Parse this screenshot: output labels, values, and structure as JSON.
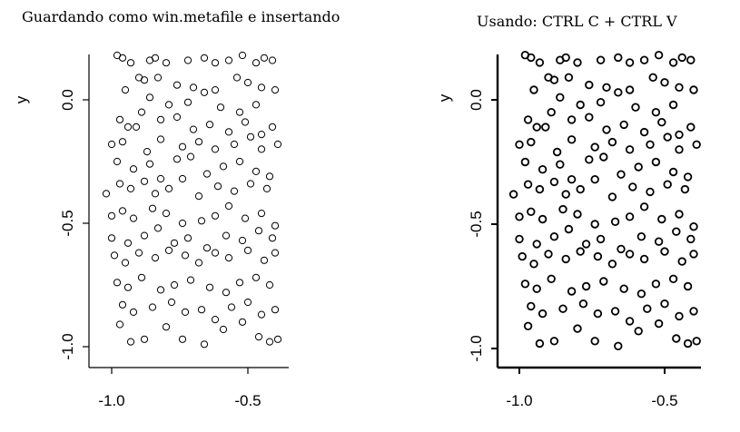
{
  "chart_data": [
    {
      "type": "scatter",
      "title": "Guardando como win.metafile e insertando",
      "ylabel": "y",
      "xlabel": "",
      "xticks": [
        -1.0,
        -0.5
      ],
      "xtick_labels": [
        "-1.0",
        "-0.5"
      ],
      "yticks": [
        0.0,
        -0.5,
        -1.0
      ],
      "ytick_labels": [
        "0.0",
        "-0.5",
        "-1.0"
      ],
      "xlim": [
        -1.08,
        -0.38
      ],
      "ylim": [
        -1.02,
        0.19
      ],
      "marker": "open-circle",
      "marker_color": "#000000",
      "points": [
        [
          -0.98,
          0.18
        ],
        [
          -0.96,
          0.17
        ],
        [
          -0.93,
          0.15
        ],
        [
          -0.86,
          0.16
        ],
        [
          -0.84,
          0.17
        ],
        [
          -0.8,
          0.15
        ],
        [
          -0.72,
          0.16
        ],
        [
          -0.66,
          0.17
        ],
        [
          -0.62,
          0.15
        ],
        [
          -0.57,
          0.16
        ],
        [
          -0.52,
          0.18
        ],
        [
          -0.47,
          0.15
        ],
        [
          -0.44,
          0.17
        ],
        [
          -0.41,
          0.16
        ],
        [
          -0.9,
          0.09
        ],
        [
          -0.88,
          0.08
        ],
        [
          -0.83,
          0.09
        ],
        [
          -0.76,
          0.06
        ],
        [
          -0.7,
          0.05
        ],
        [
          -0.66,
          0.03
        ],
        [
          -0.62,
          0.04
        ],
        [
          -0.54,
          0.09
        ],
        [
          -0.5,
          0.07
        ],
        [
          -0.45,
          0.05
        ],
        [
          -0.4,
          0.04
        ],
        [
          -0.95,
          0.04
        ],
        [
          -0.86,
          0.01
        ],
        [
          -0.79,
          -0.02
        ],
        [
          -0.72,
          -0.01
        ],
        [
          -0.6,
          -0.03
        ],
        [
          -0.53,
          -0.05
        ],
        [
          -0.47,
          -0.02
        ],
        [
          -0.97,
          -0.08
        ],
        [
          -0.94,
          -0.11
        ],
        [
          -0.89,
          -0.05
        ],
        [
          -0.82,
          -0.08
        ],
        [
          -0.76,
          -0.07
        ],
        [
          -0.7,
          -0.12
        ],
        [
          -0.64,
          -0.1
        ],
        [
          -0.57,
          -0.13
        ],
        [
          -0.51,
          -0.09
        ],
        [
          -0.45,
          -0.14
        ],
        [
          -0.41,
          -0.11
        ],
        [
          -1.0,
          -0.18
        ],
        [
          -0.96,
          -0.17
        ],
        [
          -0.91,
          -0.11
        ],
        [
          -0.87,
          -0.21
        ],
        [
          -0.82,
          -0.16
        ],
        [
          -0.74,
          -0.19
        ],
        [
          -0.68,
          -0.17
        ],
        [
          -0.62,
          -0.2
        ],
        [
          -0.55,
          -0.18
        ],
        [
          -0.49,
          -0.15
        ],
        [
          -0.45,
          -0.2
        ],
        [
          -0.39,
          -0.18
        ],
        [
          -0.98,
          -0.25
        ],
        [
          -0.92,
          -0.28
        ],
        [
          -0.86,
          -0.26
        ],
        [
          -0.82,
          -0.32
        ],
        [
          -0.76,
          -0.24
        ],
        [
          -0.71,
          -0.23
        ],
        [
          -0.65,
          -0.3
        ],
        [
          -0.59,
          -0.27
        ],
        [
          -0.53,
          -0.25
        ],
        [
          -0.47,
          -0.29
        ],
        [
          -0.42,
          -0.31
        ],
        [
          -1.02,
          -0.38
        ],
        [
          -0.97,
          -0.34
        ],
        [
          -0.93,
          -0.36
        ],
        [
          -0.88,
          -0.33
        ],
        [
          -0.84,
          -0.38
        ],
        [
          -0.79,
          -0.36
        ],
        [
          -0.74,
          -0.32
        ],
        [
          -0.68,
          -0.39
        ],
        [
          -0.61,
          -0.35
        ],
        [
          -0.55,
          -0.37
        ],
        [
          -0.49,
          -0.34
        ],
        [
          -0.43,
          -0.36
        ],
        [
          -1.0,
          -0.47
        ],
        [
          -0.96,
          -0.45
        ],
        [
          -0.92,
          -0.48
        ],
        [
          -0.85,
          -0.44
        ],
        [
          -0.8,
          -0.46
        ],
        [
          -0.74,
          -0.5
        ],
        [
          -0.67,
          -0.49
        ],
        [
          -0.62,
          -0.47
        ],
        [
          -0.57,
          -0.43
        ],
        [
          -0.51,
          -0.48
        ],
        [
          -0.45,
          -0.46
        ],
        [
          -0.4,
          -0.51
        ],
        [
          -1.0,
          -0.56
        ],
        [
          -0.94,
          -0.58
        ],
        [
          -0.88,
          -0.55
        ],
        [
          -0.83,
          -0.52
        ],
        [
          -0.77,
          -0.58
        ],
        [
          -0.72,
          -0.56
        ],
        [
          -0.65,
          -0.6
        ],
        [
          -0.58,
          -0.55
        ],
        [
          -0.52,
          -0.57
        ],
        [
          -0.46,
          -0.53
        ],
        [
          -0.41,
          -0.56
        ],
        [
          -0.99,
          -0.63
        ],
        [
          -0.95,
          -0.66
        ],
        [
          -0.9,
          -0.62
        ],
        [
          -0.84,
          -0.64
        ],
        [
          -0.79,
          -0.61
        ],
        [
          -0.73,
          -0.63
        ],
        [
          -0.68,
          -0.66
        ],
        [
          -0.62,
          -0.62
        ],
        [
          -0.57,
          -0.64
        ],
        [
          -0.5,
          -0.61
        ],
        [
          -0.44,
          -0.65
        ],
        [
          -0.4,
          -0.62
        ],
        [
          -0.98,
          -0.74
        ],
        [
          -0.94,
          -0.76
        ],
        [
          -0.89,
          -0.72
        ],
        [
          -0.82,
          -0.77
        ],
        [
          -0.77,
          -0.75
        ],
        [
          -0.71,
          -0.73
        ],
        [
          -0.64,
          -0.76
        ],
        [
          -0.58,
          -0.78
        ],
        [
          -0.53,
          -0.74
        ],
        [
          -0.47,
          -0.72
        ],
        [
          -0.42,
          -0.75
        ],
        [
          -0.96,
          -0.83
        ],
        [
          -0.92,
          -0.86
        ],
        [
          -0.85,
          -0.84
        ],
        [
          -0.78,
          -0.82
        ],
        [
          -0.73,
          -0.86
        ],
        [
          -0.67,
          -0.85
        ],
        [
          -0.62,
          -0.89
        ],
        [
          -0.56,
          -0.84
        ],
        [
          -0.5,
          -0.82
        ],
        [
          -0.45,
          -0.87
        ],
        [
          -0.4,
          -0.85
        ],
        [
          -0.97,
          -0.91
        ],
        [
          -0.93,
          -0.98
        ],
        [
          -0.88,
          -0.97
        ],
        [
          -0.8,
          -0.92
        ],
        [
          -0.74,
          -0.97
        ],
        [
          -0.66,
          -0.99
        ],
        [
          -0.59,
          -0.93
        ],
        [
          -0.52,
          -0.9
        ],
        [
          -0.46,
          -0.96
        ],
        [
          -0.42,
          -0.98
        ],
        [
          -0.39,
          -0.97
        ]
      ]
    },
    {
      "type": "scatter",
      "title": "Usando: CTRL C + CTRL V",
      "ylabel": "y",
      "xlabel": "",
      "xticks": [
        -1.0,
        -0.5
      ],
      "xtick_labels": [
        "-1.0",
        "-0.5"
      ],
      "yticks": [
        0.0,
        -0.5,
        -1.0
      ],
      "ytick_labels": [
        "0.0",
        "-0.5",
        "-1.0"
      ],
      "xlim": [
        -1.08,
        -0.38
      ],
      "ylim": [
        -1.02,
        0.19
      ],
      "marker": "open-circle",
      "marker_color": "#000000",
      "points": [
        [
          -0.98,
          0.18
        ],
        [
          -0.96,
          0.17
        ],
        [
          -0.93,
          0.15
        ],
        [
          -0.86,
          0.16
        ],
        [
          -0.84,
          0.17
        ],
        [
          -0.8,
          0.15
        ],
        [
          -0.72,
          0.16
        ],
        [
          -0.66,
          0.17
        ],
        [
          -0.62,
          0.15
        ],
        [
          -0.57,
          0.16
        ],
        [
          -0.52,
          0.18
        ],
        [
          -0.47,
          0.15
        ],
        [
          -0.44,
          0.17
        ],
        [
          -0.41,
          0.16
        ],
        [
          -0.9,
          0.09
        ],
        [
          -0.88,
          0.08
        ],
        [
          -0.83,
          0.09
        ],
        [
          -0.76,
          0.06
        ],
        [
          -0.7,
          0.05
        ],
        [
          -0.66,
          0.03
        ],
        [
          -0.62,
          0.04
        ],
        [
          -0.54,
          0.09
        ],
        [
          -0.5,
          0.07
        ],
        [
          -0.45,
          0.05
        ],
        [
          -0.4,
          0.04
        ],
        [
          -0.95,
          0.04
        ],
        [
          -0.86,
          0.01
        ],
        [
          -0.79,
          -0.02
        ],
        [
          -0.72,
          -0.01
        ],
        [
          -0.6,
          -0.03
        ],
        [
          -0.53,
          -0.05
        ],
        [
          -0.47,
          -0.02
        ],
        [
          -0.97,
          -0.08
        ],
        [
          -0.94,
          -0.11
        ],
        [
          -0.89,
          -0.05
        ],
        [
          -0.82,
          -0.08
        ],
        [
          -0.76,
          -0.07
        ],
        [
          -0.7,
          -0.12
        ],
        [
          -0.64,
          -0.1
        ],
        [
          -0.57,
          -0.13
        ],
        [
          -0.51,
          -0.09
        ],
        [
          -0.45,
          -0.14
        ],
        [
          -0.41,
          -0.11
        ],
        [
          -1.0,
          -0.18
        ],
        [
          -0.96,
          -0.17
        ],
        [
          -0.91,
          -0.11
        ],
        [
          -0.87,
          -0.21
        ],
        [
          -0.82,
          -0.16
        ],
        [
          -0.74,
          -0.19
        ],
        [
          -0.68,
          -0.17
        ],
        [
          -0.62,
          -0.2
        ],
        [
          -0.55,
          -0.18
        ],
        [
          -0.49,
          -0.15
        ],
        [
          -0.45,
          -0.2
        ],
        [
          -0.39,
          -0.18
        ],
        [
          -0.98,
          -0.25
        ],
        [
          -0.92,
          -0.28
        ],
        [
          -0.86,
          -0.26
        ],
        [
          -0.82,
          -0.32
        ],
        [
          -0.76,
          -0.24
        ],
        [
          -0.71,
          -0.23
        ],
        [
          -0.65,
          -0.3
        ],
        [
          -0.59,
          -0.27
        ],
        [
          -0.53,
          -0.25
        ],
        [
          -0.47,
          -0.29
        ],
        [
          -0.42,
          -0.31
        ],
        [
          -1.02,
          -0.38
        ],
        [
          -0.97,
          -0.34
        ],
        [
          -0.93,
          -0.36
        ],
        [
          -0.88,
          -0.33
        ],
        [
          -0.84,
          -0.38
        ],
        [
          -0.79,
          -0.36
        ],
        [
          -0.74,
          -0.32
        ],
        [
          -0.68,
          -0.39
        ],
        [
          -0.61,
          -0.35
        ],
        [
          -0.55,
          -0.37
        ],
        [
          -0.49,
          -0.34
        ],
        [
          -0.43,
          -0.36
        ],
        [
          -1.0,
          -0.47
        ],
        [
          -0.96,
          -0.45
        ],
        [
          -0.92,
          -0.48
        ],
        [
          -0.85,
          -0.44
        ],
        [
          -0.8,
          -0.46
        ],
        [
          -0.74,
          -0.5
        ],
        [
          -0.67,
          -0.49
        ],
        [
          -0.62,
          -0.47
        ],
        [
          -0.57,
          -0.43
        ],
        [
          -0.51,
          -0.48
        ],
        [
          -0.45,
          -0.46
        ],
        [
          -0.4,
          -0.51
        ],
        [
          -1.0,
          -0.56
        ],
        [
          -0.94,
          -0.58
        ],
        [
          -0.88,
          -0.55
        ],
        [
          -0.83,
          -0.52
        ],
        [
          -0.77,
          -0.58
        ],
        [
          -0.72,
          -0.56
        ],
        [
          -0.65,
          -0.6
        ],
        [
          -0.58,
          -0.55
        ],
        [
          -0.52,
          -0.57
        ],
        [
          -0.46,
          -0.53
        ],
        [
          -0.41,
          -0.56
        ],
        [
          -0.99,
          -0.63
        ],
        [
          -0.95,
          -0.66
        ],
        [
          -0.9,
          -0.62
        ],
        [
          -0.84,
          -0.64
        ],
        [
          -0.79,
          -0.61
        ],
        [
          -0.73,
          -0.63
        ],
        [
          -0.68,
          -0.66
        ],
        [
          -0.62,
          -0.62
        ],
        [
          -0.57,
          -0.64
        ],
        [
          -0.5,
          -0.61
        ],
        [
          -0.44,
          -0.65
        ],
        [
          -0.4,
          -0.62
        ],
        [
          -0.98,
          -0.74
        ],
        [
          -0.94,
          -0.76
        ],
        [
          -0.89,
          -0.72
        ],
        [
          -0.82,
          -0.77
        ],
        [
          -0.77,
          -0.75
        ],
        [
          -0.71,
          -0.73
        ],
        [
          -0.64,
          -0.76
        ],
        [
          -0.58,
          -0.78
        ],
        [
          -0.53,
          -0.74
        ],
        [
          -0.47,
          -0.72
        ],
        [
          -0.42,
          -0.75
        ],
        [
          -0.96,
          -0.83
        ],
        [
          -0.92,
          -0.86
        ],
        [
          -0.85,
          -0.84
        ],
        [
          -0.78,
          -0.82
        ],
        [
          -0.73,
          -0.86
        ],
        [
          -0.67,
          -0.85
        ],
        [
          -0.62,
          -0.89
        ],
        [
          -0.56,
          -0.84
        ],
        [
          -0.5,
          -0.82
        ],
        [
          -0.45,
          -0.87
        ],
        [
          -0.4,
          -0.85
        ],
        [
          -0.97,
          -0.91
        ],
        [
          -0.93,
          -0.98
        ],
        [
          -0.88,
          -0.97
        ],
        [
          -0.8,
          -0.92
        ],
        [
          -0.74,
          -0.97
        ],
        [
          -0.66,
          -0.99
        ],
        [
          -0.59,
          -0.93
        ],
        [
          -0.52,
          -0.9
        ],
        [
          -0.46,
          -0.96
        ],
        [
          -0.42,
          -0.98
        ],
        [
          -0.39,
          -0.97
        ]
      ]
    }
  ]
}
